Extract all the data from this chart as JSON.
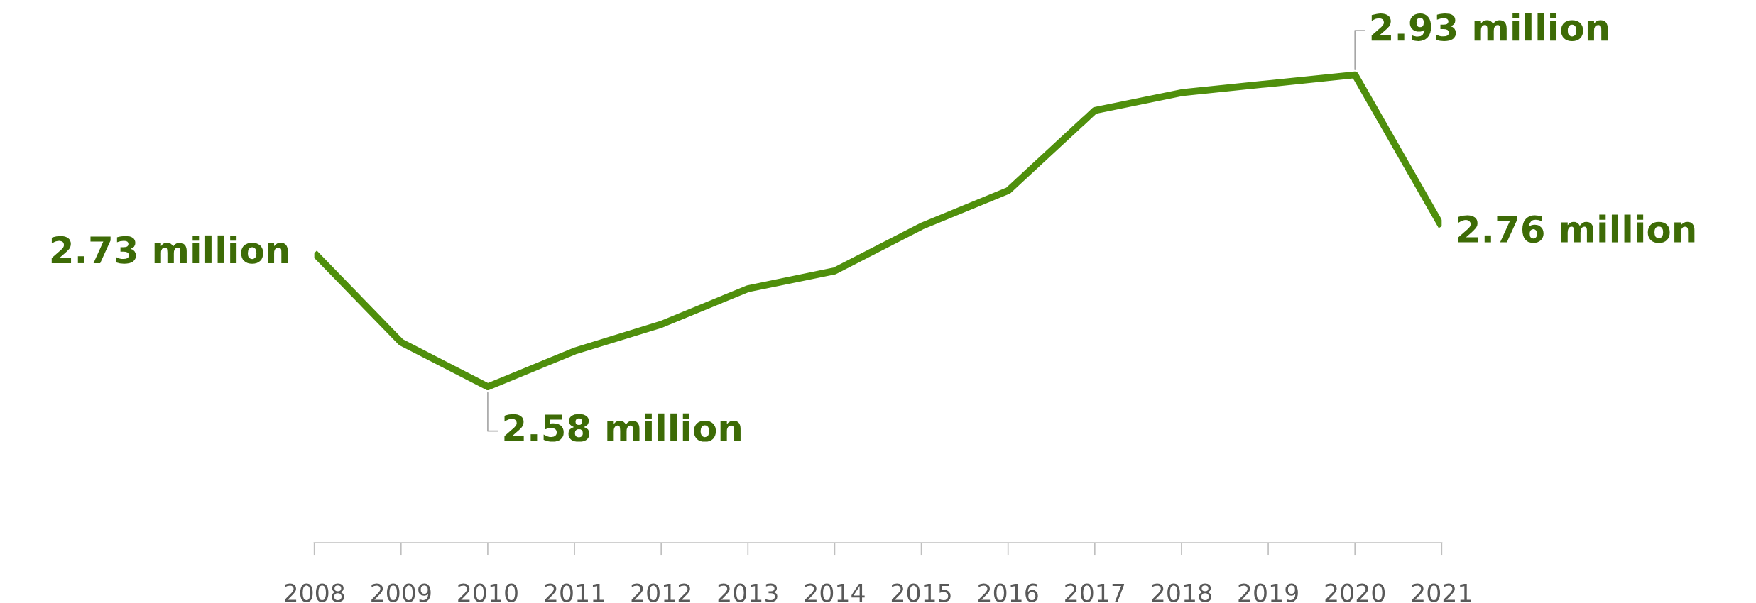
{
  "chart_data": {
    "type": "line",
    "x": [
      2008,
      2009,
      2010,
      2011,
      2012,
      2013,
      2014,
      2015,
      2016,
      2017,
      2018,
      2019,
      2020,
      2021
    ],
    "series": [
      {
        "color": "#4f8f0c",
        "values": [
          2.73,
          2.63,
          2.58,
          2.62,
          2.65,
          2.69,
          2.71,
          2.76,
          2.8,
          2.89,
          2.91,
          2.92,
          2.93,
          2.76
        ],
        "value_labels": [
          "2.73 million",
          null,
          "2.58 million",
          null,
          null,
          null,
          null,
          null,
          null,
          null,
          null,
          null,
          "2.93 million",
          "2.76 million"
        ]
      }
    ],
    "xlim": [
      2008,
      2021
    ],
    "xticks": [
      2008,
      2009,
      2010,
      2011,
      2012,
      2013,
      2014,
      2015,
      2016,
      2017,
      2018,
      2019,
      2020,
      2021
    ],
    "tick_labels": "x",
    "grid": false,
    "marker": "none",
    "line_style": "solid"
  }
}
